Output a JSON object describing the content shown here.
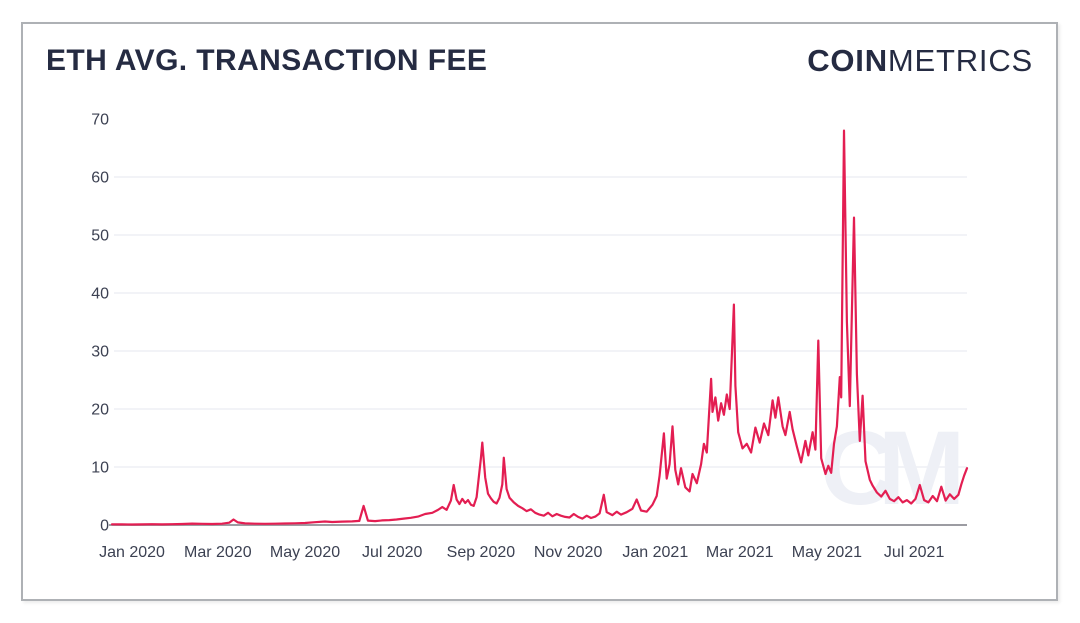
{
  "header": {
    "title": "ETH AVG. TRANSACTION FEE",
    "logo": {
      "bold": "COIN",
      "light": "METRICS"
    }
  },
  "watermark": "CM",
  "colors": {
    "line": "#e31e52",
    "title_text": "#252b42",
    "axis_text": "#3c4152",
    "gridline": "#f2f3f7",
    "baseline": "#9c9ca2",
    "watermark": "#eef0f6",
    "card_border": "#aeb1b5"
  },
  "chart_data": {
    "type": "line",
    "title": "ETH AVG. TRANSACTION FEE",
    "xlabel": "",
    "ylabel": "",
    "ylim": [
      0,
      70
    ],
    "yticks": [
      0,
      10,
      20,
      30,
      40,
      50,
      60,
      70
    ],
    "grid": "horizontal-only",
    "legend": "none",
    "x_range": [
      "2019-12-18",
      "2021-08-07"
    ],
    "x_tick_labels": [
      {
        "label": "Jan 2020",
        "date": "2020-01-01"
      },
      {
        "label": "Mar 2020",
        "date": "2020-03-01"
      },
      {
        "label": "May 2020",
        "date": "2020-05-01"
      },
      {
        "label": "Jul 2020",
        "date": "2020-07-01"
      },
      {
        "label": "Sep 2020",
        "date": "2020-09-01"
      },
      {
        "label": "Nov 2020",
        "date": "2020-11-01"
      },
      {
        "label": "Jan 2021",
        "date": "2021-01-01"
      },
      {
        "label": "Mar 2021",
        "date": "2021-03-01"
      },
      {
        "label": "May 2021",
        "date": "2021-05-01"
      },
      {
        "label": "Jul 2021",
        "date": "2021-07-01"
      }
    ],
    "series": [
      {
        "name": "ETH AVG. TRANSACTION FEE",
        "points": [
          [
            "2019-12-18",
            0.12
          ],
          [
            "2019-12-25",
            0.1
          ],
          [
            "2020-01-01",
            0.09
          ],
          [
            "2020-01-08",
            0.11
          ],
          [
            "2020-01-15",
            0.13
          ],
          [
            "2020-01-22",
            0.11
          ],
          [
            "2020-01-29",
            0.14
          ],
          [
            "2020-02-05",
            0.18
          ],
          [
            "2020-02-12",
            0.24
          ],
          [
            "2020-02-19",
            0.21
          ],
          [
            "2020-02-26",
            0.18
          ],
          [
            "2020-03-04",
            0.22
          ],
          [
            "2020-03-09",
            0.4
          ],
          [
            "2020-03-12",
            0.95
          ],
          [
            "2020-03-15",
            0.45
          ],
          [
            "2020-03-20",
            0.28
          ],
          [
            "2020-03-27",
            0.22
          ],
          [
            "2020-04-03",
            0.2
          ],
          [
            "2020-04-10",
            0.22
          ],
          [
            "2020-04-17",
            0.26
          ],
          [
            "2020-04-24",
            0.3
          ],
          [
            "2020-05-01",
            0.34
          ],
          [
            "2020-05-08",
            0.48
          ],
          [
            "2020-05-15",
            0.6
          ],
          [
            "2020-05-20",
            0.52
          ],
          [
            "2020-05-27",
            0.58
          ],
          [
            "2020-06-03",
            0.62
          ],
          [
            "2020-06-08",
            0.7
          ],
          [
            "2020-06-11",
            3.3
          ],
          [
            "2020-06-14",
            0.75
          ],
          [
            "2020-06-19",
            0.68
          ],
          [
            "2020-06-24",
            0.8
          ],
          [
            "2020-06-29",
            0.85
          ],
          [
            "2020-07-04",
            0.95
          ],
          [
            "2020-07-09",
            1.1
          ],
          [
            "2020-07-14",
            1.25
          ],
          [
            "2020-07-19",
            1.45
          ],
          [
            "2020-07-24",
            1.9
          ],
          [
            "2020-07-29",
            2.1
          ],
          [
            "2020-08-02",
            2.6
          ],
          [
            "2020-08-05",
            3.1
          ],
          [
            "2020-08-08",
            2.6
          ],
          [
            "2020-08-11",
            4.2
          ],
          [
            "2020-08-13",
            6.9
          ],
          [
            "2020-08-15",
            4.4
          ],
          [
            "2020-08-17",
            3.6
          ],
          [
            "2020-08-19",
            4.5
          ],
          [
            "2020-08-21",
            3.8
          ],
          [
            "2020-08-23",
            4.3
          ],
          [
            "2020-08-25",
            3.5
          ],
          [
            "2020-08-27",
            3.3
          ],
          [
            "2020-08-29",
            4.8
          ],
          [
            "2020-09-01",
            11.5
          ],
          [
            "2020-09-02",
            14.2
          ],
          [
            "2020-09-04",
            8.2
          ],
          [
            "2020-09-06",
            5.4
          ],
          [
            "2020-09-08",
            4.6
          ],
          [
            "2020-09-10",
            4.0
          ],
          [
            "2020-09-12",
            3.7
          ],
          [
            "2020-09-14",
            4.7
          ],
          [
            "2020-09-16",
            7.0
          ],
          [
            "2020-09-17",
            11.6
          ],
          [
            "2020-09-19",
            6.2
          ],
          [
            "2020-09-21",
            4.7
          ],
          [
            "2020-09-24",
            3.9
          ],
          [
            "2020-09-27",
            3.3
          ],
          [
            "2020-09-30",
            2.9
          ],
          [
            "2020-10-03",
            2.4
          ],
          [
            "2020-10-06",
            2.7
          ],
          [
            "2020-10-09",
            2.1
          ],
          [
            "2020-10-12",
            1.8
          ],
          [
            "2020-10-15",
            1.6
          ],
          [
            "2020-10-18",
            2.1
          ],
          [
            "2020-10-21",
            1.5
          ],
          [
            "2020-10-24",
            1.9
          ],
          [
            "2020-10-27",
            1.6
          ],
          [
            "2020-10-30",
            1.4
          ],
          [
            "2020-11-02",
            1.3
          ],
          [
            "2020-11-05",
            1.9
          ],
          [
            "2020-11-08",
            1.4
          ],
          [
            "2020-11-11",
            1.1
          ],
          [
            "2020-11-14",
            1.6
          ],
          [
            "2020-11-17",
            1.2
          ],
          [
            "2020-11-20",
            1.45
          ],
          [
            "2020-11-23",
            2.0
          ],
          [
            "2020-11-26",
            5.2
          ],
          [
            "2020-11-28",
            2.2
          ],
          [
            "2020-12-02",
            1.7
          ],
          [
            "2020-12-05",
            2.3
          ],
          [
            "2020-12-08",
            1.8
          ],
          [
            "2020-12-12",
            2.2
          ],
          [
            "2020-12-16",
            2.8
          ],
          [
            "2020-12-19",
            4.4
          ],
          [
            "2020-12-22",
            2.5
          ],
          [
            "2020-12-26",
            2.3
          ],
          [
            "2020-12-30",
            3.5
          ],
          [
            "2021-01-02",
            5.0
          ],
          [
            "2021-01-04",
            8.5
          ],
          [
            "2021-01-07",
            15.8
          ],
          [
            "2021-01-09",
            8.0
          ],
          [
            "2021-01-11",
            10.5
          ],
          [
            "2021-01-13",
            17.0
          ],
          [
            "2021-01-15",
            9.5
          ],
          [
            "2021-01-17",
            7.0
          ],
          [
            "2021-01-19",
            9.8
          ],
          [
            "2021-01-22",
            6.5
          ],
          [
            "2021-01-25",
            5.8
          ],
          [
            "2021-01-27",
            8.8
          ],
          [
            "2021-01-30",
            7.2
          ],
          [
            "2021-02-02",
            10.5
          ],
          [
            "2021-02-04",
            14.0
          ],
          [
            "2021-02-06",
            12.5
          ],
          [
            "2021-02-09",
            25.2
          ],
          [
            "2021-02-10",
            19.5
          ],
          [
            "2021-02-12",
            22.0
          ],
          [
            "2021-02-14",
            18.0
          ],
          [
            "2021-02-16",
            21.0
          ],
          [
            "2021-02-18",
            19.0
          ],
          [
            "2021-02-20",
            22.5
          ],
          [
            "2021-02-22",
            20.0
          ],
          [
            "2021-02-25",
            38.0
          ],
          [
            "2021-02-26",
            24.0
          ],
          [
            "2021-02-28",
            16.0
          ],
          [
            "2021-03-03",
            13.2
          ],
          [
            "2021-03-06",
            14.0
          ],
          [
            "2021-03-09",
            12.5
          ],
          [
            "2021-03-12",
            16.8
          ],
          [
            "2021-03-15",
            14.2
          ],
          [
            "2021-03-18",
            17.5
          ],
          [
            "2021-03-21",
            15.5
          ],
          [
            "2021-03-24",
            21.5
          ],
          [
            "2021-03-26",
            18.5
          ],
          [
            "2021-03-28",
            22.0
          ],
          [
            "2021-03-31",
            17.0
          ],
          [
            "2021-04-02",
            15.5
          ],
          [
            "2021-04-05",
            19.5
          ],
          [
            "2021-04-07",
            16.5
          ],
          [
            "2021-04-10",
            13.5
          ],
          [
            "2021-04-13",
            10.8
          ],
          [
            "2021-04-16",
            14.5
          ],
          [
            "2021-04-18",
            12.0
          ],
          [
            "2021-04-21",
            16.0
          ],
          [
            "2021-04-23",
            13.0
          ],
          [
            "2021-04-25",
            31.8
          ],
          [
            "2021-04-27",
            11.5
          ],
          [
            "2021-04-30",
            8.8
          ],
          [
            "2021-05-02",
            10.2
          ],
          [
            "2021-05-04",
            9.0
          ],
          [
            "2021-05-06",
            14.0
          ],
          [
            "2021-05-08",
            17.0
          ],
          [
            "2021-05-10",
            25.5
          ],
          [
            "2021-05-11",
            22.0
          ],
          [
            "2021-05-12",
            45.0
          ],
          [
            "2021-05-13",
            68.0
          ],
          [
            "2021-05-15",
            35.0
          ],
          [
            "2021-05-17",
            20.5
          ],
          [
            "2021-05-20",
            53.0
          ],
          [
            "2021-05-22",
            26.0
          ],
          [
            "2021-05-24",
            14.5
          ],
          [
            "2021-05-26",
            22.3
          ],
          [
            "2021-05-28",
            11.0
          ],
          [
            "2021-05-31",
            7.8
          ],
          [
            "2021-06-02",
            6.8
          ],
          [
            "2021-06-05",
            5.6
          ],
          [
            "2021-06-08",
            4.9
          ],
          [
            "2021-06-11",
            5.9
          ],
          [
            "2021-06-14",
            4.5
          ],
          [
            "2021-06-17",
            4.1
          ],
          [
            "2021-06-20",
            4.8
          ],
          [
            "2021-06-23",
            3.9
          ],
          [
            "2021-06-26",
            4.3
          ],
          [
            "2021-06-29",
            3.7
          ],
          [
            "2021-07-02",
            4.5
          ],
          [
            "2021-07-05",
            6.9
          ],
          [
            "2021-07-08",
            4.3
          ],
          [
            "2021-07-11",
            3.9
          ],
          [
            "2021-07-14",
            5.0
          ],
          [
            "2021-07-17",
            4.1
          ],
          [
            "2021-07-20",
            6.6
          ],
          [
            "2021-07-23",
            4.2
          ],
          [
            "2021-07-26",
            5.3
          ],
          [
            "2021-07-29",
            4.5
          ],
          [
            "2021-08-01",
            5.2
          ],
          [
            "2021-08-03",
            7.0
          ],
          [
            "2021-08-05",
            8.5
          ],
          [
            "2021-08-07",
            9.8
          ]
        ]
      }
    ]
  }
}
